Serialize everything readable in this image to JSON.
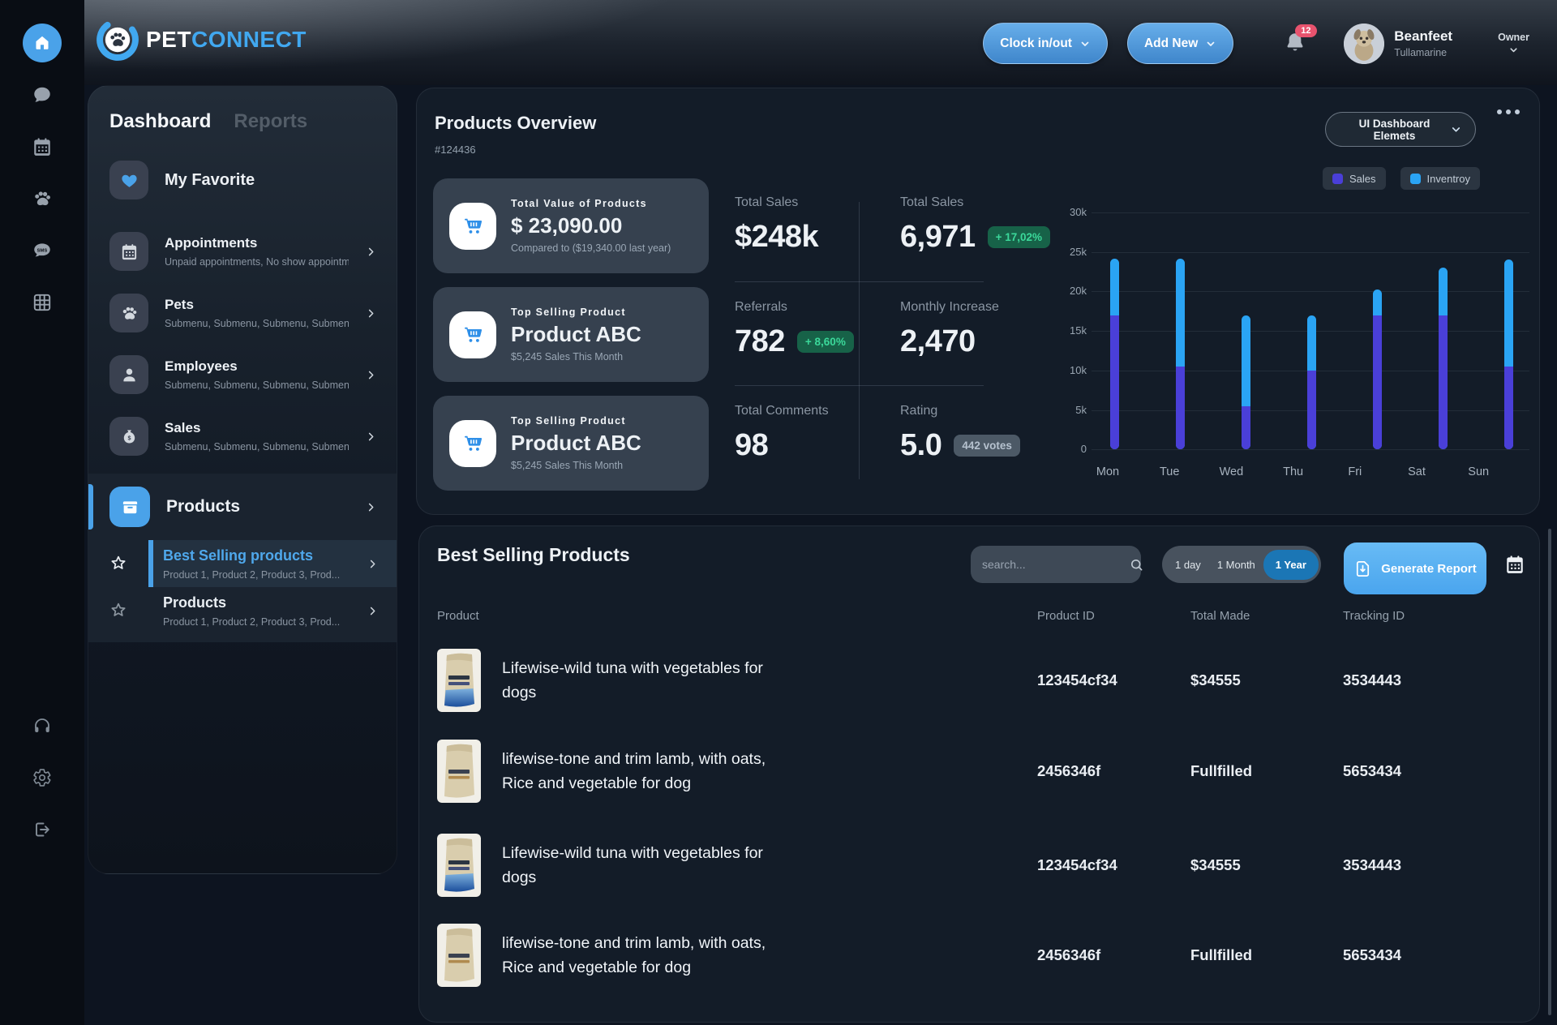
{
  "brand": {
    "pet": "PET",
    "connect": "CONNECT"
  },
  "header": {
    "clock_label": "Clock in/out",
    "add_label": "Add New",
    "notification_count": "12",
    "user_name": "Beanfeet",
    "user_location": "Tullamarine",
    "user_role": "Owner"
  },
  "rail": {
    "items": [
      {
        "icon": "home-icon",
        "active": true
      },
      {
        "icon": "chat-icon"
      },
      {
        "icon": "calendar-icon"
      },
      {
        "icon": "paw-icon"
      },
      {
        "icon": "sms-icon"
      },
      {
        "icon": "grid-icon"
      }
    ],
    "bottom": [
      {
        "icon": "headphones-icon"
      },
      {
        "icon": "gear-icon"
      },
      {
        "icon": "logout-icon"
      }
    ]
  },
  "sidebar": {
    "tabs": [
      {
        "label": "Dashboard",
        "active": true
      },
      {
        "label": "Reports",
        "active": false
      }
    ],
    "favorite_label": "My Favorite",
    "items": [
      {
        "icon": "calendar-icon",
        "label": "Appointments",
        "subtitle": "Unpaid appointments, No show appointme ..."
      },
      {
        "icon": "paw-icon",
        "label": "Pets",
        "subtitle": "Submenu, Submenu, Submenu, Submenu, ..."
      },
      {
        "icon": "person-icon",
        "label": "Employees",
        "subtitle": "Submenu, Submenu, Submenu, Submenu, ..."
      },
      {
        "icon": "money-bag-icon",
        "label": "Sales",
        "subtitle": "Submenu, Submenu, Submenu, Submenu, ..."
      }
    ],
    "products_item": {
      "icon": "box-icon",
      "label": "Products"
    },
    "sub_items": [
      {
        "label": "Best Selling products",
        "subtitle": "Product 1, Product 2, Product 3, Prod...",
        "active": true
      },
      {
        "label": "Products",
        "subtitle": "Product 1, Product 2, Product 3, Prod...",
        "active": false
      }
    ]
  },
  "overview": {
    "title": "Products Overview",
    "id": "#124436",
    "dropdown_label": "UI Dashboard Elemets",
    "cards": [
      {
        "label": "Total Value of Products",
        "value": "$ 23,090.00",
        "sub": "Compared to ($19,340.00 last year)"
      },
      {
        "label": "Top Selling Product",
        "value": "Product ABC",
        "sub": "$5,245 Sales This Month"
      },
      {
        "label": "Top Selling Product",
        "value": "Product ABC",
        "sub": "$5,245 Sales This Month"
      }
    ],
    "stats": [
      {
        "label": "Total Sales",
        "value": "$248k"
      },
      {
        "label": "Total Sales",
        "value": "6,971",
        "badge": "+ 17,02%",
        "badge_type": "green"
      },
      {
        "label": "Referrals",
        "value": "782",
        "badge": "+ 8,60%",
        "badge_type": "green"
      },
      {
        "label": "Monthly Increase",
        "value": "2,470"
      },
      {
        "label": "Total Comments",
        "value": "98"
      },
      {
        "label": "Rating",
        "value": "5.0",
        "badge": "442 votes",
        "badge_type": "gray"
      }
    ]
  },
  "chart_data": {
    "type": "bar",
    "stacked": true,
    "title": "",
    "xlabel": "",
    "ylabel": "",
    "categories": [
      "Mon",
      "Tue",
      "Wed",
      "Thu",
      "Fri",
      "Sat",
      "Sun"
    ],
    "series": [
      {
        "name": "Sales",
        "color": "#4a3fd8",
        "values": [
          17000,
          10500,
          5500,
          10000,
          17000,
          17000,
          10500
        ]
      },
      {
        "name": "Inventroy",
        "color": "#2aa4f4",
        "values": [
          7200,
          13700,
          11500,
          7000,
          3300,
          6000,
          13500
        ]
      }
    ],
    "ylim": [
      0,
      30000
    ],
    "yticks": [
      "30k",
      "25k",
      "20k",
      "15k",
      "10k",
      "5k",
      "0"
    ],
    "grid": true,
    "legend_position": "top-right"
  },
  "best_selling": {
    "title": "Best Selling Products",
    "search_placeholder": "search...",
    "range_options": [
      {
        "label": "1 day",
        "active": false
      },
      {
        "label": "1 Month",
        "active": false
      },
      {
        "label": "1 Year",
        "active": true
      }
    ],
    "generate_button": "Generate Report",
    "columns": [
      "Product",
      "Product ID",
      "Total Made",
      "Tracking ID"
    ],
    "rows": [
      {
        "product": "Lifewise-wild tuna with vegetables for dogs",
        "image": "tuna",
        "product_id": "123454cf34",
        "total_made": "$34555",
        "tracking_id": "3534443"
      },
      {
        "product": "lifewise-tone and trim lamb, with oats, Rice and vegetable for dog",
        "image": "lamb",
        "product_id": "2456346f",
        "total_made": "Fullfilled",
        "tracking_id": "5653434"
      },
      {
        "product": "Lifewise-wild tuna with vegetables for dogs",
        "image": "tuna",
        "product_id": "123454cf34",
        "total_made": "$34555",
        "tracking_id": "3534443"
      },
      {
        "product": "lifewise-tone and trim lamb, with oats, Rice and vegetable for dog",
        "image": "lamb",
        "product_id": "2456346f",
        "total_made": "Fullfilled",
        "tracking_id": "5653434"
      }
    ]
  },
  "colors": {
    "accent_blue": "#4aa2e9",
    "bright_blue": "#2aa4f4",
    "indigo": "#4a3fd8",
    "green_badge_bg": "#176248",
    "green_badge_text": "#3bd89a",
    "card_bg": "#131c28",
    "notification_red": "#e8536e"
  }
}
